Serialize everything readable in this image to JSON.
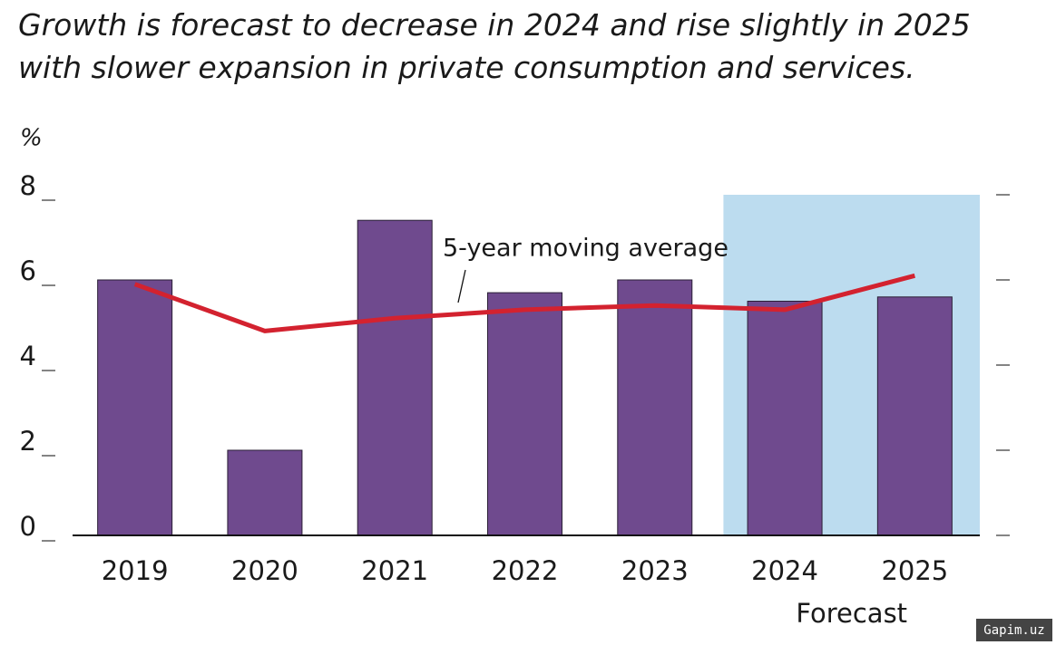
{
  "chart_data": {
    "type": "bar",
    "title": "Growth is forecast to decrease in 2024 and rise slightly in 2025 with slower expansion in private consumption and services.",
    "y_unit": "%",
    "categories": [
      "2019",
      "2020",
      "2021",
      "2022",
      "2023",
      "2024",
      "2025"
    ],
    "values": [
      6.0,
      2.0,
      7.4,
      5.7,
      6.0,
      5.5,
      5.6
    ],
    "color": "#6f4a8e",
    "line": {
      "name": "5-year moving average",
      "color": "#d3222f",
      "values": [
        5.9,
        4.8,
        5.1,
        5.3,
        5.4,
        5.3,
        6.1
      ]
    },
    "shaded": [
      false,
      false,
      false,
      false,
      false,
      true,
      true
    ],
    "shade_color": "#bcdcef",
    "shade_label": "Forecast",
    "ylim": [
      0,
      8
    ],
    "yticks": [
      0,
      2,
      4,
      6,
      8
    ],
    "watermark": "Gapim.uz"
  }
}
